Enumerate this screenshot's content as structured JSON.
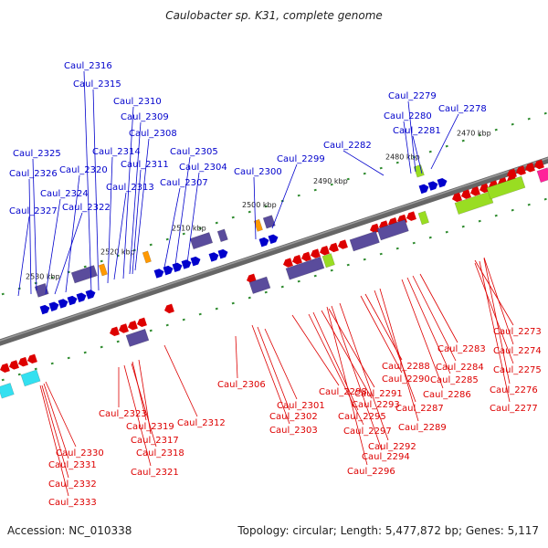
{
  "title": "Caulobacter sp. K31, complete genome",
  "footer": {
    "accession": "Accession: NC_010338",
    "summary": "Topology: circular; Length: 5,477,872 bp; Genes: 5,117"
  },
  "colors": {
    "plus_strand": "#0000cc",
    "minus_strand": "#dd0000",
    "backbone": "#666666",
    "ticks": "#2d8a2d",
    "cog_purple": "#5a4c9c",
    "cog_orange": "#ff9900",
    "cog_lime": "#99dd22",
    "cog_cyan": "#33e0f0",
    "cog_magenta": "#ff2299"
  },
  "ticks": [
    "2530 kbp",
    "2520 kbp",
    "2510 kbp",
    "2500 kbp",
    "2490 kbp",
    "2480 kbp",
    "2470 kbp"
  ],
  "plus_genes": [
    "Caul_2316",
    "Caul_2315",
    "Caul_2310",
    "Caul_2309",
    "Caul_2308",
    "Caul_2314",
    "Caul_2311",
    "Caul_2305",
    "Caul_2304",
    "Caul_2325",
    "Caul_2320",
    "Caul_2313",
    "Caul_2307",
    "Caul_2326",
    "Caul_2324",
    "Caul_2322",
    "Caul_2327",
    "Caul_2300",
    "Caul_2299",
    "Caul_2279",
    "Caul_2278",
    "Caul_2280",
    "Caul_2281",
    "Caul_2282"
  ],
  "minus_genes": [
    "Caul_2306",
    "Caul_2301",
    "Caul_2302",
    "Caul_2303",
    "Caul_2298",
    "Caul_2291",
    "Caul_2293",
    "Caul_2295",
    "Caul_2297",
    "Caul_2292",
    "Caul_2294",
    "Caul_2296",
    "Caul_2288",
    "Caul_2290",
    "Caul_2287",
    "Caul_2289",
    "Caul_2283",
    "Caul_2284",
    "Caul_2285",
    "Caul_2286",
    "Caul_2273",
    "Caul_2274",
    "Caul_2275",
    "Caul_2276",
    "Caul_2277",
    "Caul_2323",
    "Caul_2319",
    "Caul_2317",
    "Caul_2312",
    "Caul_2318",
    "Caul_2321",
    "Caul_2330",
    "Caul_2331",
    "Caul_2332",
    "Caul_2333"
  ]
}
